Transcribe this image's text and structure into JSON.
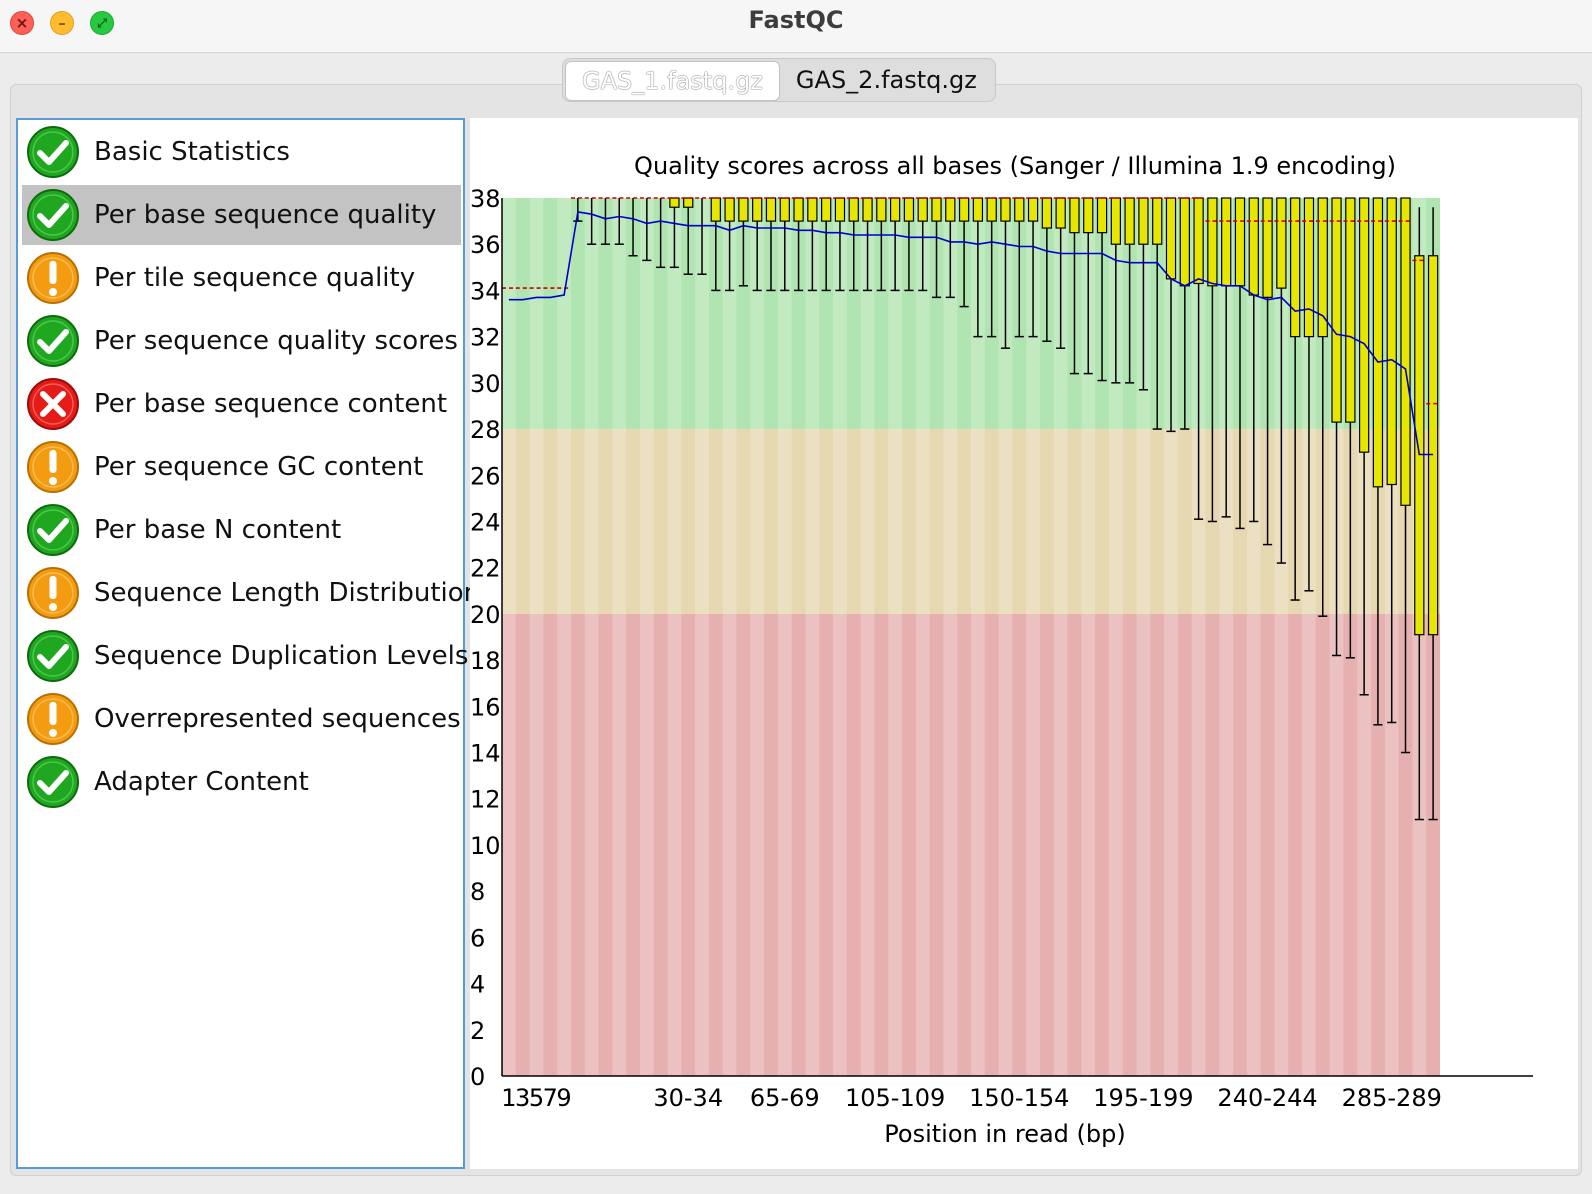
{
  "window": {
    "title": "FastQC"
  },
  "tabs": [
    {
      "label": "GAS_1.fastq.gz",
      "active": true
    },
    {
      "label": "GAS_2.fastq.gz",
      "active": false
    }
  ],
  "modules": [
    {
      "label": "Basic Statistics",
      "status": "pass",
      "icon": "check-icon"
    },
    {
      "label": "Per base sequence quality",
      "status": "pass",
      "icon": "check-icon",
      "selected": true
    },
    {
      "label": "Per tile sequence quality",
      "status": "warn",
      "icon": "warning-icon"
    },
    {
      "label": "Per sequence quality scores",
      "status": "pass",
      "icon": "check-icon"
    },
    {
      "label": "Per base sequence content",
      "status": "fail",
      "icon": "cross-icon"
    },
    {
      "label": "Per sequence GC content",
      "status": "warn",
      "icon": "warning-icon"
    },
    {
      "label": "Per base N content",
      "status": "pass",
      "icon": "check-icon"
    },
    {
      "label": "Sequence Length Distribution",
      "status": "warn",
      "icon": "warning-icon"
    },
    {
      "label": "Sequence Duplication Levels",
      "status": "pass",
      "icon": "check-icon"
    },
    {
      "label": "Overrepresented sequences",
      "status": "warn",
      "icon": "warning-icon"
    },
    {
      "label": "Adapter Content",
      "status": "pass",
      "icon": "check-icon"
    }
  ],
  "colors": {
    "pass": "#1fa81f",
    "warn": "#f39c12",
    "fail": "#e41b17",
    "good_zone": "#b0e4b0",
    "ok_zone": "#e6d8b0",
    "bad_zone": "#e6b0b0",
    "box": "#e6e600",
    "median": "#cc0000",
    "mean": "#0000cc"
  },
  "chart_data": {
    "type": "box",
    "title": "Quality scores across all bases (Sanger / Illumina 1.9 encoding)",
    "xlabel": "Position in read (bp)",
    "ylabel": "",
    "ylim": [
      0,
      38
    ],
    "yticks": [
      0,
      2,
      4,
      6,
      8,
      10,
      12,
      14,
      16,
      18,
      20,
      22,
      24,
      26,
      28,
      30,
      32,
      34,
      36,
      38
    ],
    "xtick_labels": [
      "1",
      "3",
      "5",
      "7",
      "9",
      "30-34",
      "65-69",
      "105-109",
      "150-154",
      "195-199",
      "240-244",
      "285-289"
    ],
    "zones": [
      {
        "name": "good",
        "from": 28,
        "to": 38
      },
      {
        "name": "ok",
        "from": 20,
        "to": 28
      },
      {
        "name": "bad",
        "from": 0,
        "to": 20
      }
    ],
    "box_data": {
      "columns": 68,
      "mean": [
        33.6,
        33.6,
        33.7,
        33.7,
        33.8,
        37.4,
        37.3,
        37.1,
        37.2,
        37.1,
        36.9,
        37.0,
        36.9,
        36.8,
        36.8,
        36.8,
        36.6,
        36.8,
        36.7,
        36.7,
        36.7,
        36.6,
        36.6,
        36.5,
        36.5,
        36.4,
        36.4,
        36.4,
        36.4,
        36.3,
        36.3,
        36.3,
        36.1,
        36.1,
        36.0,
        36.1,
        36.0,
        35.9,
        35.9,
        35.7,
        35.6,
        35.6,
        35.6,
        35.6,
        35.3,
        35.2,
        35.2,
        35.2,
        34.5,
        34.2,
        34.5,
        34.3,
        34.2,
        34.2,
        33.8,
        33.6,
        33.7,
        33.1,
        33.2,
        32.9,
        32.1,
        32.0,
        31.7,
        30.9,
        31.0,
        30.6,
        26.9,
        26.9
      ],
      "median": [
        34.1,
        34.1,
        34.1,
        34.1,
        34.1,
        38,
        38,
        38,
        38,
        38,
        38,
        38,
        38,
        38,
        38,
        38,
        38,
        38,
        38,
        38,
        38,
        38,
        38,
        38,
        38,
        38,
        38,
        38,
        38,
        38,
        38,
        38,
        38,
        38,
        38,
        38,
        38,
        38,
        38,
        38,
        38,
        38,
        38,
        38,
        38,
        38,
        38,
        38,
        38,
        38,
        38,
        37.0,
        37.0,
        37.0,
        37.0,
        37.0,
        37.0,
        37.0,
        37.0,
        37.0,
        37.0,
        37.0,
        37.0,
        37.0,
        37.0,
        37.0,
        35.3,
        29.1
      ],
      "q1": [
        34.1,
        34.1,
        34.1,
        34.1,
        34.1,
        38,
        38,
        38,
        38,
        38,
        38,
        38,
        37.6,
        37.6,
        38,
        37.0,
        37.0,
        37.0,
        37.0,
        37.0,
        37.0,
        37.0,
        37.0,
        37.0,
        37.0,
        37.0,
        37.0,
        37.0,
        37.0,
        37.0,
        37.0,
        37.0,
        37.0,
        37.0,
        37.0,
        37.0,
        37.0,
        37.0,
        37.0,
        36.7,
        36.7,
        36.5,
        36.5,
        36.5,
        36.0,
        36.0,
        36.0,
        36.0,
        34.5,
        34.2,
        34.3,
        34.2,
        34.2,
        34.2,
        33.8,
        33.7,
        34.1,
        32.0,
        32.0,
        32.0,
        28.3,
        28.3,
        27.0,
        25.5,
        25.6,
        24.7,
        19.1,
        19.1
      ],
      "q3": [
        34.1,
        34.1,
        34.1,
        34.1,
        34.1,
        38,
        38,
        38,
        38,
        38,
        38,
        38,
        38,
        38,
        38,
        38,
        38,
        38,
        38,
        38,
        38,
        38,
        38,
        38,
        38,
        38,
        38,
        38,
        38,
        38,
        38,
        38,
        38,
        38,
        38,
        38,
        38,
        38,
        38,
        38,
        38,
        38,
        38,
        38,
        38,
        38,
        38,
        38,
        38,
        38,
        38,
        38,
        38,
        38,
        38,
        38,
        38,
        38,
        38,
        38,
        38,
        38,
        38,
        38,
        38,
        38,
        35.5,
        35.5
      ],
      "p10": [
        34.1,
        34.1,
        34.1,
        34.1,
        34.1,
        37.0,
        36.0,
        36.0,
        36.0,
        35.5,
        35.3,
        35.0,
        35.0,
        34.7,
        34.7,
        34.0,
        34.0,
        34.2,
        34.0,
        34.0,
        34.0,
        34.0,
        34.0,
        34.0,
        34.0,
        34.0,
        34.0,
        34.0,
        34.0,
        34.0,
        34.0,
        33.7,
        33.7,
        33.3,
        32.0,
        32.0,
        31.5,
        32.0,
        32.0,
        31.8,
        31.5,
        30.4,
        30.4,
        30.1,
        30.0,
        30.0,
        29.7,
        28.0,
        27.9,
        28.0,
        24.1,
        24.0,
        24.2,
        23.7,
        24.0,
        23.0,
        22.2,
        20.6,
        21.0,
        19.9,
        18.2,
        18.1,
        16.5,
        15.2,
        15.3,
        14.0,
        11.1,
        11.1
      ],
      "p90": [
        34.1,
        34.1,
        34.1,
        34.1,
        34.1,
        38,
        38,
        38,
        38,
        38,
        38,
        38,
        38,
        38,
        38,
        38,
        38,
        38,
        38,
        38,
        38,
        38,
        38,
        38,
        38,
        38,
        38,
        38,
        38,
        38,
        38,
        38,
        38,
        38,
        38,
        38,
        38,
        38,
        38,
        38,
        38,
        38,
        38,
        38,
        38,
        38,
        38,
        38,
        38,
        38,
        38,
        38,
        38,
        38,
        38,
        38,
        38,
        38,
        38,
        38,
        38,
        38,
        38,
        38,
        38,
        38,
        37.6,
        37.6
      ]
    }
  }
}
